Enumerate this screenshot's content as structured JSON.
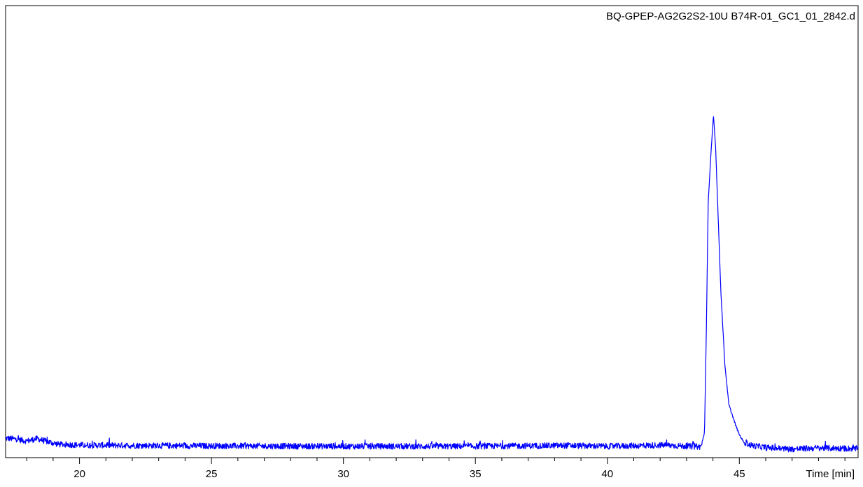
{
  "chart_data": {
    "type": "line",
    "title": "BQ-GPEP-AG2G2S2-10U B74R-01_GC1_01_2842.d",
    "xlabel": "Time [min]",
    "ylabel": "",
    "xlim": [
      17.2,
      49.5
    ],
    "ylim": [
      0,
      100
    ],
    "x_ticks": [
      20,
      25,
      30,
      35,
      40,
      45
    ],
    "x_tick_labels": [
      "20",
      "25",
      "30",
      "35",
      "40",
      "45"
    ],
    "minor_tick_step": 1,
    "grid": false,
    "legend": "none",
    "line_color": "#0000ff",
    "baseline_level": 1.8,
    "series": [
      {
        "values_profile": [
          [
            17.2,
            3.6
          ],
          [
            17.6,
            3.4
          ],
          [
            18.0,
            2.9
          ],
          [
            18.4,
            3.5
          ],
          [
            18.8,
            2.7
          ],
          [
            19.2,
            2.1
          ],
          [
            20.0,
            1.9
          ],
          [
            22.0,
            1.8
          ],
          [
            25.0,
            1.7
          ],
          [
            30.0,
            1.6
          ],
          [
            35.0,
            1.6
          ],
          [
            38.4,
            1.8
          ],
          [
            40.0,
            1.6
          ],
          [
            42.2,
            1.9
          ],
          [
            43.0,
            1.6
          ],
          [
            43.55,
            1.5
          ],
          [
            43.68,
            5.0
          ],
          [
            43.75,
            30.0
          ],
          [
            43.82,
            62.0
          ],
          [
            43.92,
            73.5
          ],
          [
            44.02,
            83.5
          ],
          [
            44.1,
            76.0
          ],
          [
            44.2,
            58.0
          ],
          [
            44.3,
            40.0
          ],
          [
            44.45,
            22.0
          ],
          [
            44.6,
            12.0
          ],
          [
            44.75,
            9.0
          ],
          [
            44.85,
            7.0
          ],
          [
            45.0,
            4.5
          ],
          [
            45.15,
            2.8
          ],
          [
            45.4,
            1.9
          ],
          [
            46.0,
            1.3
          ],
          [
            47.0,
            0.9
          ],
          [
            48.0,
            1.2
          ],
          [
            49.5,
            1.0
          ]
        ]
      }
    ]
  }
}
